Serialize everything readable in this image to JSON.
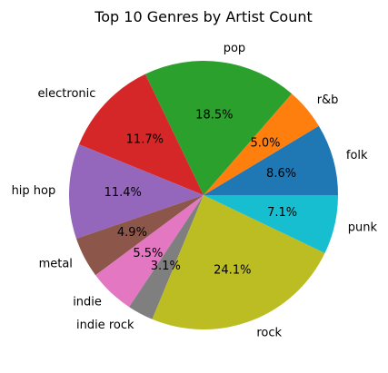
{
  "chart_data": {
    "type": "pie",
    "title": "Top 10 Genres by Artist Count",
    "slices": [
      {
        "label": "folk",
        "pct_label": "8.6%",
        "value": 8.6,
        "color": "#1f77b4"
      },
      {
        "label": "r&b",
        "pct_label": "5.0%",
        "value": 5.0,
        "color": "#ff7f0e"
      },
      {
        "label": "pop",
        "pct_label": "18.5%",
        "value": 18.5,
        "color": "#2ca02c"
      },
      {
        "label": "electronic",
        "pct_label": "11.7%",
        "value": 11.7,
        "color": "#d62728"
      },
      {
        "label": "hip hop",
        "pct_label": "11.4%",
        "value": 11.4,
        "color": "#9467bd"
      },
      {
        "label": "metal",
        "pct_label": "4.9%",
        "value": 4.9,
        "color": "#8c564b"
      },
      {
        "label": "indie",
        "pct_label": "5.5%",
        "value": 5.5,
        "color": "#e377c2"
      },
      {
        "label": "indie rock",
        "pct_label": "3.1%",
        "value": 3.1,
        "color": "#7f7f7f"
      },
      {
        "label": "rock",
        "pct_label": "24.1%",
        "value": 24.1,
        "color": "#bcbd22"
      },
      {
        "label": "punk",
        "pct_label": "7.1%",
        "value": 7.1,
        "color": "#17becf"
      }
    ],
    "start_angle_deg": 0,
    "direction": "counterclockwise"
  }
}
